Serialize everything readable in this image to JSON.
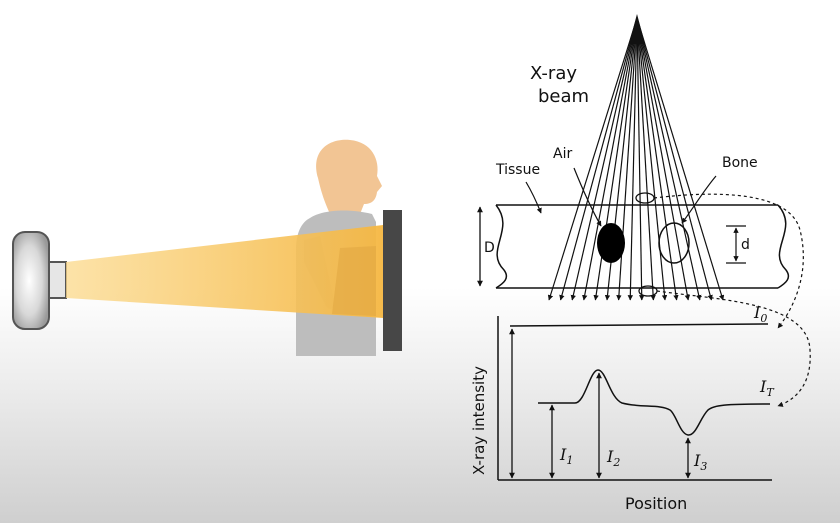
{
  "colors": {
    "beam": "#f5b742",
    "detector": "#474747",
    "head": "#f2c594",
    "shirt": "#b5b5b5",
    "source": "#c7c7c7"
  },
  "labels": {
    "beam_line1": "X-ray",
    "beam_line2": "beam",
    "air": "Air",
    "bone": "Bone",
    "tissue": "Tissue",
    "thickness_D": "D",
    "thickness_d": "d",
    "I0": "I",
    "I0_sub": "0",
    "IT": "I",
    "IT_sub": "T",
    "I1": "I",
    "I1_sub": "1",
    "I2": "I",
    "I2_sub": "2",
    "I3": "I",
    "I3_sub": "3",
    "y_axis": "X-ray intensity",
    "x_axis": "Position"
  }
}
